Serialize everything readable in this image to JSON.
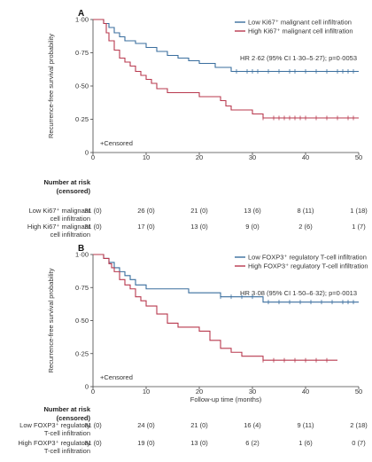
{
  "chart_data": [
    {
      "type": "line",
      "panel": "A",
      "ylabel": "Recurrence-free survival probability",
      "xlabel": "",
      "xlim": [
        0,
        50
      ],
      "ylim": [
        0,
        1
      ],
      "xticks": [
        "0",
        "10",
        "20",
        "30",
        "40",
        "50"
      ],
      "yticks": [
        "0",
        "0·25",
        "0·50",
        "0·75",
        "1·00"
      ],
      "annotation": "HR 2·62 (95% CI 1·30–5·27); p=0·0053",
      "censored_label": "+Censored",
      "legend_position": "top-right",
      "series": [
        {
          "name": "Low Ki67⁺ malignant cell infiltration",
          "color": "#3a6e9e",
          "x": [
            0,
            2,
            3,
            4,
            5,
            6,
            8,
            10,
            12,
            14,
            16,
            18,
            20,
            23,
            26,
            50
          ],
          "y": [
            1.0,
            0.97,
            0.94,
            0.9,
            0.87,
            0.84,
            0.82,
            0.79,
            0.76,
            0.73,
            0.71,
            0.69,
            0.67,
            0.64,
            0.61,
            0.61
          ],
          "censor_x": [
            27,
            29,
            30,
            31,
            33,
            35,
            37,
            38,
            40,
            42,
            44,
            46,
            47,
            48,
            49
          ]
        },
        {
          "name": "High Ki67⁺ malignant cell infiltration",
          "color": "#b8394e",
          "x": [
            0,
            2,
            2.5,
            3,
            4,
            5,
            6,
            7,
            8,
            9,
            10,
            11,
            12,
            14,
            17,
            20,
            24,
            25,
            26,
            30,
            32,
            50
          ],
          "y": [
            1.0,
            0.97,
            0.9,
            0.84,
            0.77,
            0.71,
            0.68,
            0.65,
            0.61,
            0.58,
            0.55,
            0.52,
            0.48,
            0.45,
            0.45,
            0.42,
            0.39,
            0.35,
            0.32,
            0.29,
            0.26,
            0.26
          ],
          "censor_x": [
            32,
            34,
            35,
            36,
            37,
            38,
            39,
            40,
            42,
            44,
            46,
            48,
            49
          ]
        }
      ],
      "risk_table": {
        "header": [
          "Number at risk",
          "(censored)"
        ],
        "rows": [
          {
            "label": [
              "Low Ki67⁺ malignant",
              "cell infiltration"
            ],
            "values": [
              "31 (0)",
              "26 (0)",
              "21 (0)",
              "13 (6)",
              "8 (11)",
              "1 (18)"
            ]
          },
          {
            "label": [
              "High Ki67⁺ malignant",
              "cell infiltration"
            ],
            "values": [
              "31 (0)",
              "17 (0)",
              "13 (0)",
              "9 (0)",
              "2 (6)",
              "1 (7)"
            ]
          }
        ]
      }
    },
    {
      "type": "line",
      "panel": "B",
      "ylabel": "Recurrence-free survival probability",
      "xlabel": "Follow-up time (months)",
      "xlim": [
        0,
        50
      ],
      "ylim": [
        0,
        1
      ],
      "xticks": [
        "0",
        "10",
        "20",
        "30",
        "40",
        "50"
      ],
      "yticks": [
        "0",
        "0·25",
        "0·50",
        "0·75",
        "1·00"
      ],
      "annotation": "HR 3·08 (95% CI 1·50–6·32); p=0·0013",
      "censored_label": "+Censored",
      "legend_position": "top-right",
      "series": [
        {
          "name": "Low FOXP3⁺ regulatory T-cell infiltration",
          "color": "#3a6e9e",
          "x": [
            0,
            2,
            3,
            4,
            5,
            6,
            7,
            8,
            10,
            12,
            14,
            16,
            18,
            20,
            24,
            32,
            50
          ],
          "y": [
            1.0,
            0.97,
            0.94,
            0.9,
            0.87,
            0.84,
            0.81,
            0.77,
            0.74,
            0.74,
            0.74,
            0.74,
            0.71,
            0.71,
            0.68,
            0.64,
            0.64
          ],
          "censor_x": [
            24,
            26,
            28,
            30,
            33,
            35,
            37,
            39,
            41,
            43,
            45,
            47,
            48,
            49
          ]
        },
        {
          "name": "High FOXP3⁺ regulatory T-cell infiltration",
          "color": "#b8394e",
          "x": [
            0,
            2,
            3,
            3.5,
            4,
            5,
            6,
            7,
            8,
            9,
            10,
            12,
            14,
            16,
            20,
            22,
            24,
            26,
            28,
            32,
            46
          ],
          "y": [
            1.0,
            0.97,
            0.93,
            0.9,
            0.87,
            0.81,
            0.77,
            0.74,
            0.68,
            0.65,
            0.61,
            0.55,
            0.48,
            0.45,
            0.42,
            0.35,
            0.29,
            0.26,
            0.23,
            0.2,
            0.2
          ],
          "censor_x": [
            32,
            34,
            36,
            38,
            40,
            42,
            44
          ]
        }
      ],
      "risk_table": {
        "header": [
          "Number at risk",
          "(censored)"
        ],
        "rows": [
          {
            "label": [
              "Low FOXP3⁺ regulatory",
              "T-cell infiltration"
            ],
            "values": [
              "31 (0)",
              "24 (0)",
              "21 (0)",
              "16 (4)",
              "9 (11)",
              "2 (18)"
            ]
          },
          {
            "label": [
              "High FOXP3⁺ regulatory",
              "T-cell infiltration"
            ],
            "values": [
              "31 (0)",
              "19 (0)",
              "13 (0)",
              "6 (2)",
              "1 (6)",
              "0 (7)"
            ]
          }
        ]
      }
    }
  ]
}
